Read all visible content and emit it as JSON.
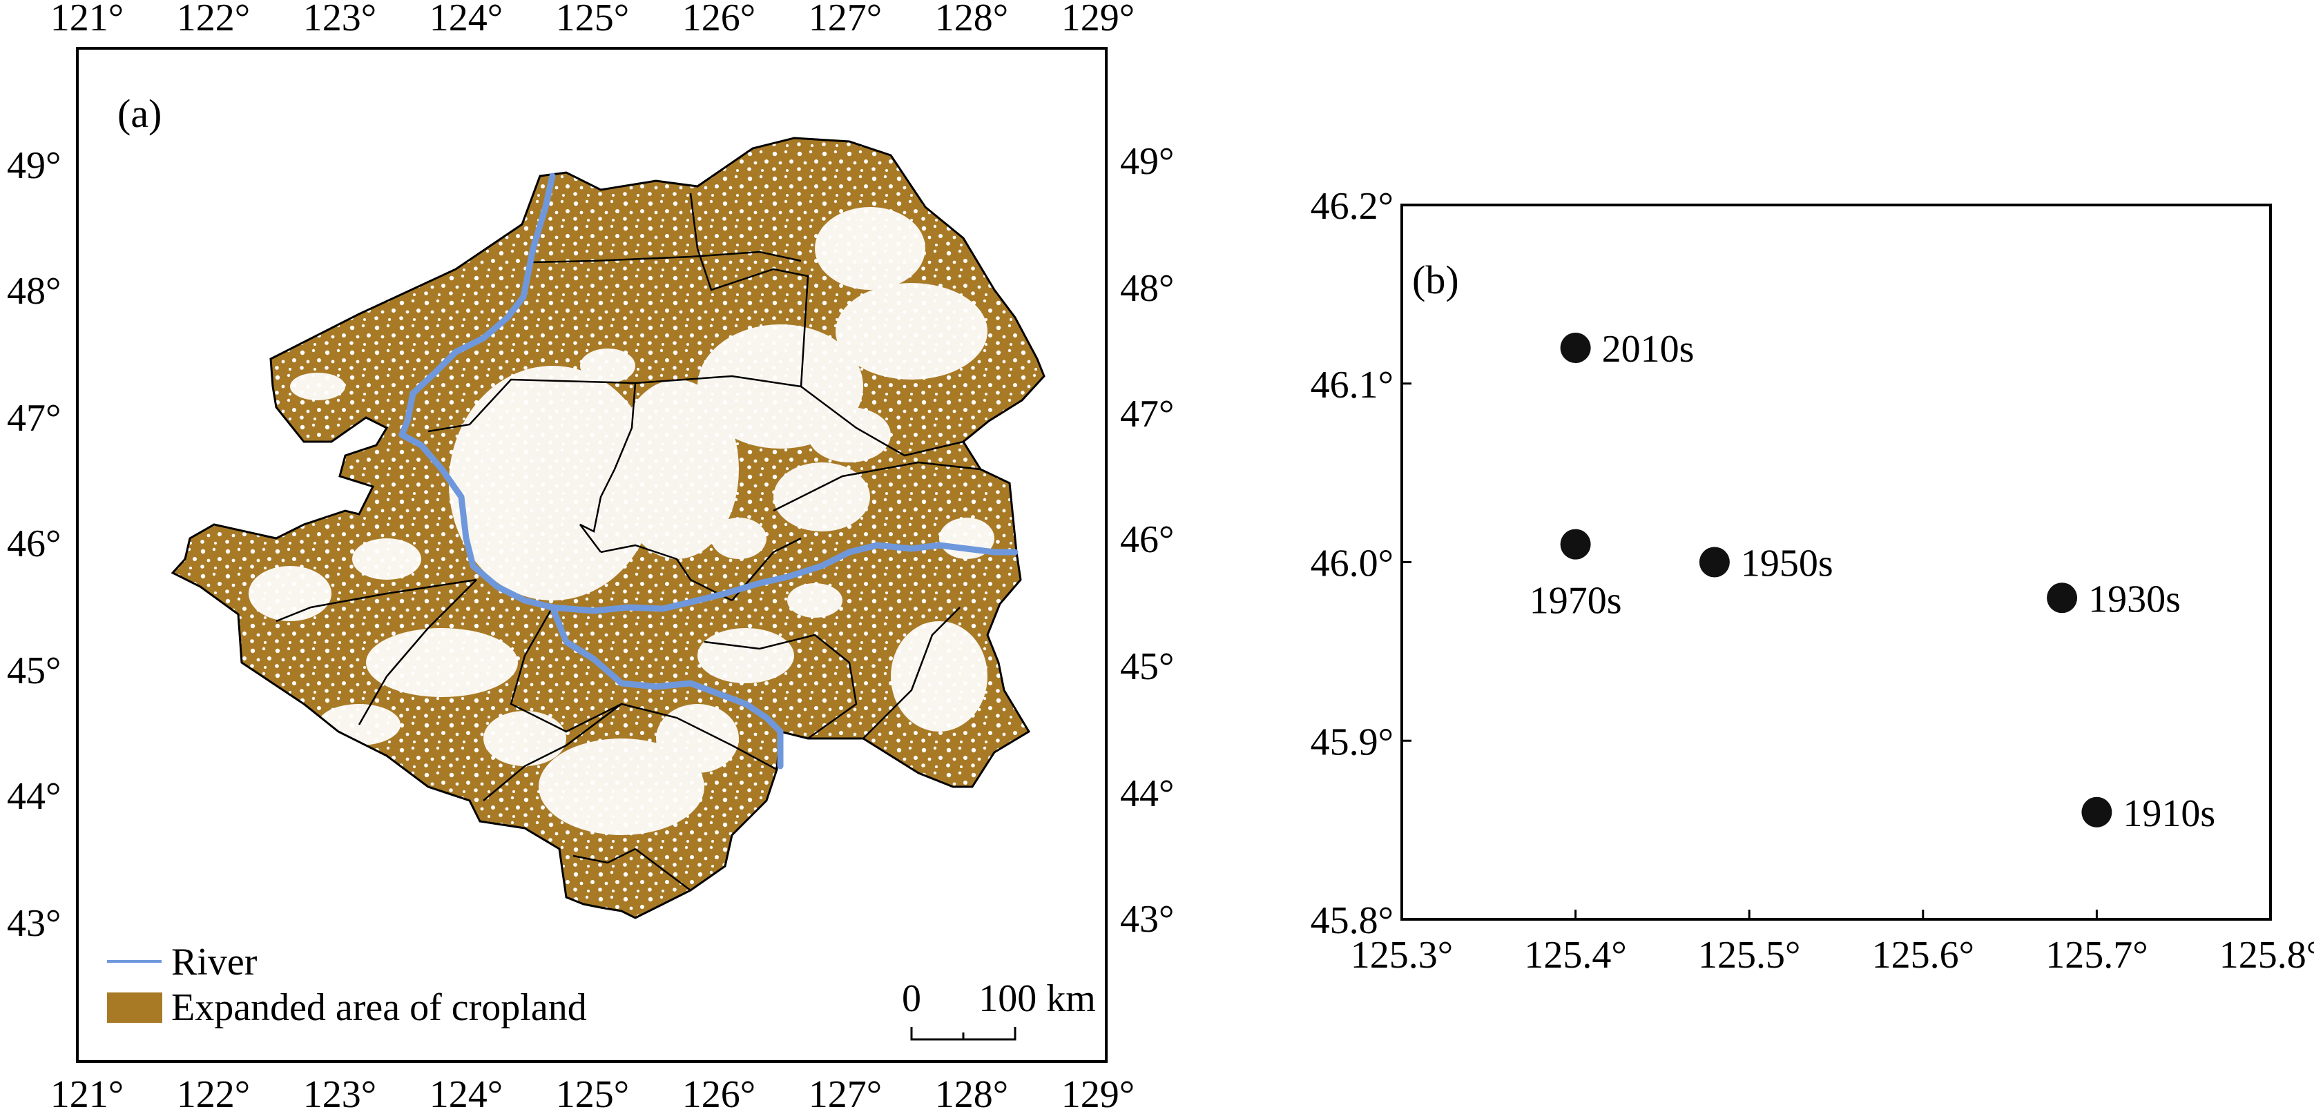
{
  "panel_a": {
    "label": "(a)",
    "lon_ticks": [
      "121°",
      "122°",
      "123°",
      "124°",
      "125°",
      "126°",
      "127°",
      "128°",
      "129°"
    ],
    "lat_ticks": [
      "49°",
      "48°",
      "47°",
      "46°",
      "45°",
      "44°",
      "43°"
    ],
    "legend": {
      "river_label": "River",
      "cropland_label": "Expanded area of cropland"
    },
    "scale_bar": {
      "zero": "0",
      "distance": "100 km"
    },
    "colors": {
      "cropland": "#a87a26",
      "river": "#6f98dc",
      "boundary": "#000000"
    }
  },
  "panel_b": {
    "label": "(b)",
    "chart_data": {
      "type": "scatter",
      "x_ticks": [
        "125.3°",
        "125.4°",
        "125.5°",
        "125.6°",
        "125.7°",
        "125.8°"
      ],
      "y_ticks": [
        "46.2°",
        "46.1°",
        "46.0°",
        "45.9°",
        "45.8°"
      ],
      "xlim": [
        125.3,
        125.8
      ],
      "ylim": [
        45.8,
        46.2
      ],
      "points": [
        {
          "label": "2010s",
          "x": 125.4,
          "y": 46.12
        },
        {
          "label": "1970s",
          "x": 125.4,
          "y": 46.01
        },
        {
          "label": "1950s",
          "x": 125.48,
          "y": 46.0
        },
        {
          "label": "1930s",
          "x": 125.68,
          "y": 45.98
        },
        {
          "label": "1910s",
          "x": 125.7,
          "y": 45.86
        }
      ],
      "marker_color": "#111111"
    }
  }
}
